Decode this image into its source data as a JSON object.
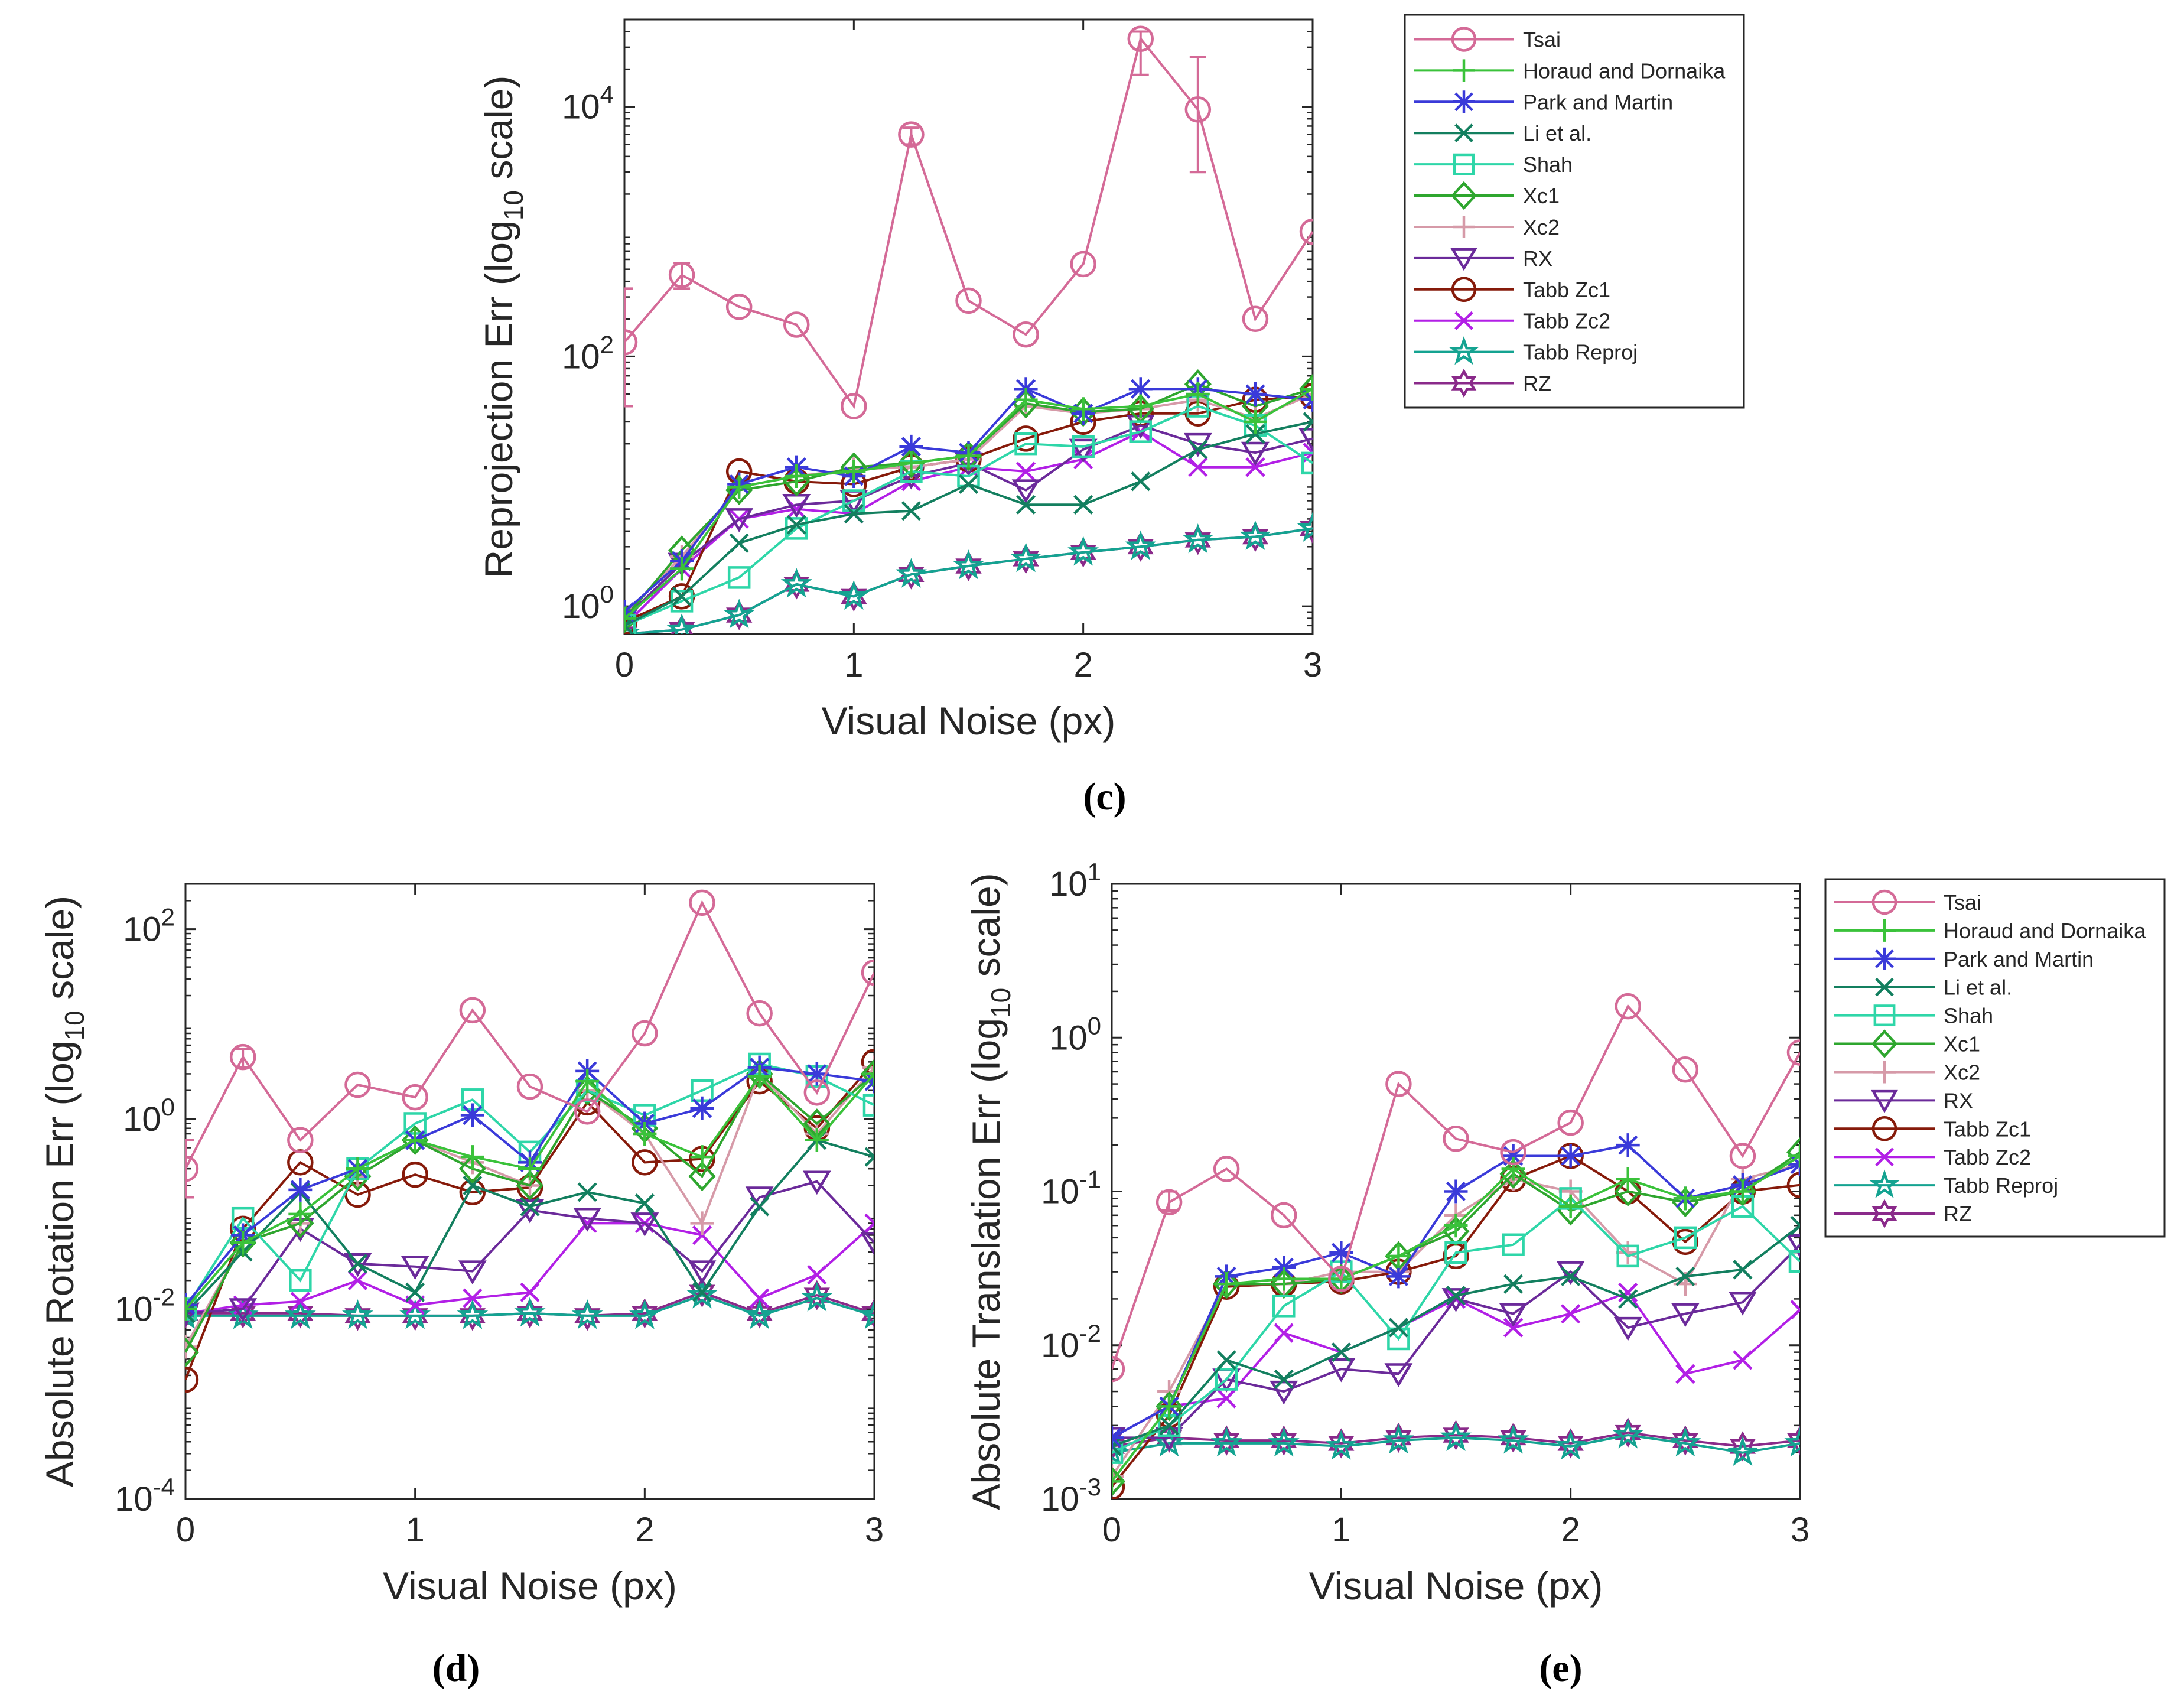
{
  "captions": [
    "(c)",
    "(d)",
    "(e)"
  ],
  "series_style": [
    {
      "name": "Tsai",
      "color": "#d46a97",
      "marker": "circle"
    },
    {
      "name": "Horaud and Dornaika",
      "color": "#3ac23a",
      "marker": "plus"
    },
    {
      "name": "Park and Martin",
      "color": "#3a3ad9",
      "marker": "asterisk"
    },
    {
      "name": "Li et al.",
      "color": "#137f5f",
      "marker": "x"
    },
    {
      "name": "Shah",
      "color": "#2ed6a8",
      "marker": "square"
    },
    {
      "name": "Xc1",
      "color": "#2ea62e",
      "marker": "diamond"
    },
    {
      "name": "Xc2",
      "color": "#d69aa8",
      "marker": "plus"
    },
    {
      "name": "RX",
      "color": "#6b2a9a",
      "marker": "triangle-down"
    },
    {
      "name": "Tabb Zc1",
      "color": "#861a0a",
      "marker": "circle"
    },
    {
      "name": "Tabb Zc2",
      "color": "#b21fe6",
      "marker": "x"
    },
    {
      "name": "Tabb Reproj",
      "color": "#14a391",
      "marker": "pentagram"
    },
    {
      "name": "RZ",
      "color": "#8a2a8a",
      "marker": "hexagram"
    }
  ],
  "chart_data": [
    {
      "type": "line",
      "panel": "(c)",
      "xlabel": "Visual Noise (px)",
      "ylabel": "Reprojection Err (log10 scale)",
      "yscale": "log10",
      "xlim": [
        0,
        3
      ],
      "ylim": [
        0.6,
        50000
      ],
      "xticks": [
        "0",
        "1",
        "2",
        "3"
      ],
      "yticks": [
        {
          "exp": 0,
          "label": "10",
          "sup": "0"
        },
        {
          "exp": 2,
          "label": "10",
          "sup": "2"
        },
        {
          "exp": 4,
          "label": "10",
          "sup": "4"
        }
      ],
      "legend": "outside-right",
      "x": [
        0,
        0.25,
        0.5,
        0.75,
        1,
        1.25,
        1.5,
        1.75,
        2,
        2.25,
        2.5,
        2.75,
        3
      ],
      "series": [
        {
          "name": "Tsai",
          "values": [
            130,
            450,
            250,
            180,
            40,
            6000,
            280,
            150,
            550,
            35000,
            9500,
            200,
            1000
          ],
          "errors": [
            [
              40,
              350
            ],
            [
              350,
              560
            ],
            null,
            null,
            null,
            [
              5000,
              6800
            ],
            null,
            null,
            null,
            [
              18000,
              40000
            ],
            [
              3000,
              25000
            ],
            null,
            null
          ]
        },
        {
          "name": "Horaud and Dornaika",
          "values": [
            0.8,
            2.0,
            9.0,
            11.0,
            12.0,
            14.0,
            16.0,
            45.0,
            38.0,
            40.0,
            50.0,
            30.0,
            55.0
          ]
        },
        {
          "name": "Park and Martin",
          "values": [
            0.9,
            2.3,
            9.5,
            13.0,
            11.0,
            19.0,
            17.0,
            55.0,
            35.0,
            55.0,
            55.0,
            50.0,
            45.0
          ]
        },
        {
          "name": "Li et al.",
          "values": [
            0.7,
            1.2,
            3.2,
            4.5,
            5.5,
            5.8,
            9.5,
            6.5,
            6.5,
            10.0,
            18.0,
            24.0,
            30.0
          ]
        },
        {
          "name": "Shah",
          "values": [
            0.7,
            1.1,
            1.7,
            4.2,
            7.0,
            12.0,
            11.0,
            20.0,
            19.0,
            25.0,
            40.0,
            28.0,
            14.0
          ]
        },
        {
          "name": "Xc1",
          "values": [
            0.8,
            2.8,
            8.5,
            10.0,
            13.0,
            14.0,
            16.0,
            42.0,
            36.0,
            38.0,
            60.0,
            40.0,
            55.0
          ]
        },
        {
          "name": "Xc2",
          "values": [
            0.85,
            2.5,
            9.0,
            11.0,
            12.5,
            13.0,
            15.0,
            40.0,
            35.0,
            38.0,
            45.0,
            32.0,
            50.0
          ]
        },
        {
          "name": "RX",
          "values": [
            0.8,
            2.2,
            5.0,
            6.5,
            7.0,
            11.0,
            14.0,
            8.5,
            18.0,
            28.0,
            20.0,
            17.0,
            22.0
          ]
        },
        {
          "name": "Tabb Zc1",
          "values": [
            0.75,
            1.2,
            12.0,
            10.0,
            9.5,
            13.0,
            15.0,
            22.0,
            30.0,
            35.0,
            35.0,
            45.0,
            48.0
          ]
        },
        {
          "name": "Tabb Zc2",
          "values": [
            0.7,
            2.0,
            5.0,
            6.0,
            5.5,
            10.0,
            13.0,
            12.0,
            15.0,
            25.0,
            13.0,
            13.0,
            17.0
          ]
        },
        {
          "name": "Tabb Reproj",
          "values": [
            0.6,
            0.65,
            0.85,
            1.5,
            1.2,
            1.8,
            2.1,
            2.4,
            2.7,
            3.0,
            3.4,
            3.6,
            4.2
          ]
        },
        {
          "name": "RZ",
          "values": [
            0.6,
            0.65,
            0.85,
            1.5,
            1.2,
            1.8,
            2.1,
            2.4,
            2.7,
            3.0,
            3.4,
            3.6,
            4.2
          ]
        }
      ]
    },
    {
      "type": "line",
      "panel": "(d)",
      "xlabel": "Visual Noise (px)",
      "ylabel": "Absolute Rotation Err (log10 scale)",
      "yscale": "log10",
      "xlim": [
        0,
        3
      ],
      "ylim": [
        0.0001,
        300
      ],
      "xticks": [
        "0",
        "1",
        "2",
        "3"
      ],
      "yticks": [
        {
          "exp": -4,
          "label": "10",
          "sup": "-4"
        },
        {
          "exp": -2,
          "label": "10",
          "sup": "-2"
        },
        {
          "exp": 0,
          "label": "10",
          "sup": "0"
        },
        {
          "exp": 2,
          "label": "10",
          "sup": "2"
        }
      ],
      "legend": "none",
      "x": [
        0,
        0.25,
        0.5,
        0.75,
        1,
        1.25,
        1.5,
        1.75,
        2,
        2.25,
        2.5,
        2.75,
        3
      ],
      "series": [
        {
          "name": "Tsai",
          "values": [
            0.3,
            4.5,
            0.6,
            2.3,
            1.7,
            14.0,
            2.2,
            1.2,
            8.0,
            190.0,
            13.0,
            1.9,
            35.0
          ],
          "errors": [
            [
              0.15,
              0.6
            ],
            [
              3.5,
              5.5
            ],
            null,
            null,
            null,
            null,
            null,
            null,
            null,
            null,
            null,
            null,
            null
          ]
        },
        {
          "name": "Horaud and Dornaika",
          "values": [
            0.01,
            0.05,
            0.1,
            0.3,
            0.6,
            0.4,
            0.3,
            2.5,
            0.7,
            0.4,
            2.8,
            0.6,
            3.0
          ]
        },
        {
          "name": "Park and Martin",
          "values": [
            0.011,
            0.06,
            0.18,
            0.3,
            0.6,
            1.1,
            0.35,
            3.2,
            0.9,
            1.3,
            3.5,
            3.0,
            2.5
          ]
        },
        {
          "name": "Li et al.",
          "values": [
            0.009,
            0.04,
            0.17,
            0.03,
            0.015,
            0.2,
            0.12,
            0.17,
            0.13,
            0.015,
            0.12,
            0.6,
            0.4
          ]
        },
        {
          "name": "Shah",
          "values": [
            0.01,
            0.09,
            0.02,
            0.3,
            0.9,
            1.6,
            0.45,
            2.0,
            1.1,
            2.0,
            3.8,
            2.8,
            1.4
          ]
        },
        {
          "name": "Xc1",
          "values": [
            0.0035,
            0.05,
            0.08,
            0.25,
            0.6,
            0.3,
            0.2,
            2.0,
            0.8,
            0.25,
            3.0,
            0.9,
            3.0
          ]
        },
        {
          "name": "Xc2",
          "values": [
            0.004,
            0.05,
            0.08,
            0.25,
            0.6,
            0.35,
            0.2,
            2.0,
            0.7,
            0.08,
            3.0,
            0.7,
            3.5
          ]
        },
        {
          "name": "RX",
          "values": [
            0.009,
            0.01,
            0.07,
            0.03,
            0.028,
            0.025,
            0.11,
            0.09,
            0.08,
            0.025,
            0.15,
            0.22,
            0.05
          ]
        },
        {
          "name": "Tabb Zc1",
          "values": [
            0.0018,
            0.07,
            0.35,
            0.16,
            0.26,
            0.17,
            0.19,
            1.5,
            0.35,
            0.38,
            2.5,
            0.8,
            4.0
          ]
        },
        {
          "name": "Tabb Zc2",
          "values": [
            0.009,
            0.011,
            0.012,
            0.02,
            0.011,
            0.013,
            0.015,
            0.08,
            0.08,
            0.06,
            0.013,
            0.023,
            0.08
          ]
        },
        {
          "name": "Tabb Reproj",
          "values": [
            0.0085,
            0.0085,
            0.0085,
            0.0085,
            0.0085,
            0.0085,
            0.009,
            0.0085,
            0.0085,
            0.014,
            0.0085,
            0.013,
            0.0085
          ]
        },
        {
          "name": "RZ",
          "values": [
            0.009,
            0.009,
            0.009,
            0.0085,
            0.0085,
            0.0085,
            0.009,
            0.0085,
            0.009,
            0.015,
            0.009,
            0.014,
            0.009
          ]
        }
      ]
    },
    {
      "type": "line",
      "panel": "(e)",
      "xlabel": "Visual Noise (px)",
      "ylabel": "Absolute Translation Err (log10 scale)",
      "yscale": "log10",
      "xlim": [
        0,
        3
      ],
      "ylim": [
        0.001,
        10
      ],
      "xticks": [
        "0",
        "1",
        "2",
        "3"
      ],
      "yticks": [
        {
          "exp": -3,
          "label": "10",
          "sup": "-3"
        },
        {
          "exp": -2,
          "label": "10",
          "sup": "-2"
        },
        {
          "exp": -1,
          "label": "10",
          "sup": "-1"
        },
        {
          "exp": 0,
          "label": "10",
          "sup": "0"
        },
        {
          "exp": 1,
          "label": "10",
          "sup": "1"
        }
      ],
      "legend": "outside-right",
      "x": [
        0,
        0.25,
        0.5,
        0.75,
        1,
        1.25,
        1.5,
        1.75,
        2,
        2.25,
        2.5,
        2.75,
        3
      ],
      "series": [
        {
          "name": "Tsai",
          "values": [
            0.007,
            0.085,
            0.14,
            0.07,
            0.027,
            0.5,
            0.22,
            0.18,
            0.28,
            1.6,
            0.62,
            0.17,
            0.8
          ],
          "errors": [
            null,
            [
              0.075,
              0.1
            ],
            null,
            null,
            null,
            null,
            null,
            null,
            null,
            null,
            null,
            null,
            null
          ]
        },
        {
          "name": "Horaud and Dornaika",
          "values": [
            0.0013,
            0.004,
            0.025,
            0.027,
            0.027,
            0.038,
            0.06,
            0.14,
            0.08,
            0.12,
            0.09,
            0.1,
            0.17
          ]
        },
        {
          "name": "Park and Martin",
          "values": [
            0.0025,
            0.004,
            0.028,
            0.032,
            0.04,
            0.028,
            0.1,
            0.17,
            0.17,
            0.2,
            0.09,
            0.11,
            0.15
          ]
        },
        {
          "name": "Li et al.",
          "values": [
            0.0022,
            0.003,
            0.008,
            0.006,
            0.009,
            0.013,
            0.021,
            0.025,
            0.028,
            0.02,
            0.028,
            0.031,
            0.06
          ]
        },
        {
          "name": "Shah",
          "values": [
            0.002,
            0.003,
            0.006,
            0.018,
            0.03,
            0.011,
            0.04,
            0.045,
            0.09,
            0.038,
            0.05,
            0.08,
            0.035
          ]
        },
        {
          "name": "Xc1",
          "values": [
            0.0013,
            0.004,
            0.025,
            0.025,
            0.027,
            0.038,
            0.055,
            0.13,
            0.075,
            0.1,
            0.085,
            0.1,
            0.18
          ]
        },
        {
          "name": "Xc2",
          "values": [
            0.0014,
            0.005,
            0.025,
            0.025,
            0.03,
            0.03,
            0.07,
            0.12,
            0.1,
            0.04,
            0.025,
            0.12,
            0.15
          ]
        },
        {
          "name": "RX",
          "values": [
            0.0025,
            0.0025,
            0.006,
            0.005,
            0.007,
            0.0065,
            0.02,
            0.016,
            0.03,
            0.013,
            0.016,
            0.019,
            0.045
          ]
        },
        {
          "name": "Tabb Zc1",
          "values": [
            0.0012,
            0.0035,
            0.024,
            0.025,
            0.026,
            0.03,
            0.038,
            0.12,
            0.17,
            0.1,
            0.047,
            0.1,
            0.11
          ]
        },
        {
          "name": "Tabb Zc2",
          "values": [
            0.0025,
            0.004,
            0.0045,
            0.012,
            0.009,
            0.013,
            0.02,
            0.013,
            0.016,
            0.022,
            0.0065,
            0.008,
            0.017
          ]
        },
        {
          "name": "Tabb Reproj",
          "values": [
            0.002,
            0.0023,
            0.0023,
            0.0023,
            0.0022,
            0.0024,
            0.0025,
            0.0024,
            0.0022,
            0.0026,
            0.0023,
            0.002,
            0.0023
          ]
        },
        {
          "name": "RZ",
          "values": [
            0.0022,
            0.0025,
            0.0024,
            0.0024,
            0.0023,
            0.0025,
            0.0026,
            0.0025,
            0.0023,
            0.0027,
            0.0024,
            0.0022,
            0.0024
          ]
        }
      ]
    }
  ]
}
